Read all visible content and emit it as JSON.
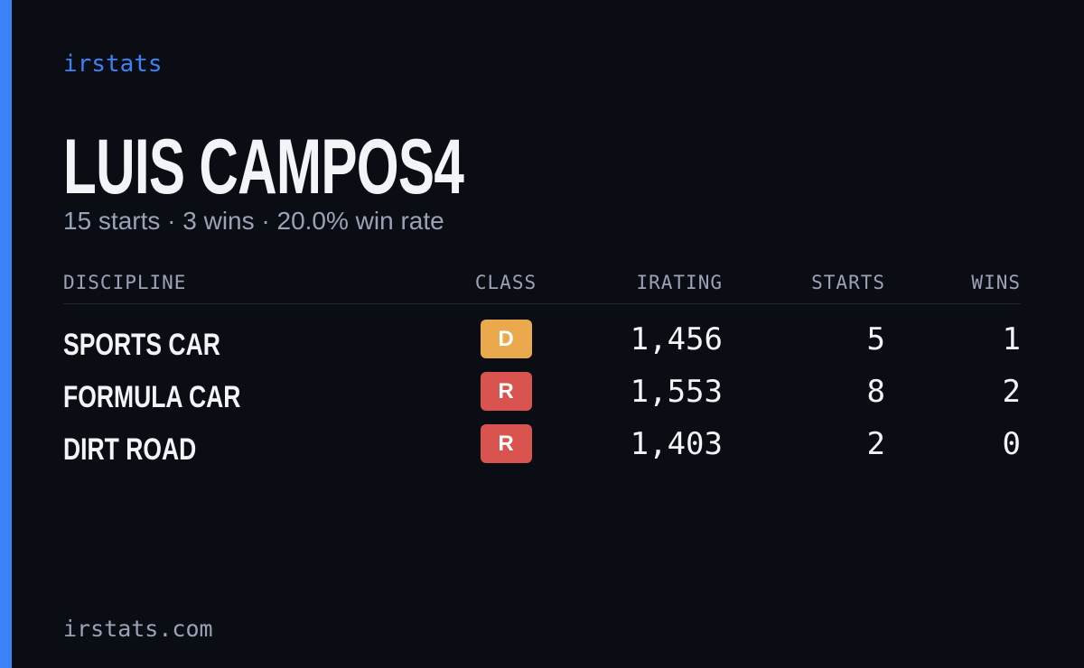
{
  "header": {
    "brand": "irstats",
    "name": "LUIS CAMPOS4",
    "summary": "15 starts · 3 wins · 20.0% win rate"
  },
  "table": {
    "columns": [
      "DISCIPLINE",
      "CLASS",
      "IRATING",
      "STARTS",
      "WINS"
    ],
    "rows": [
      {
        "discipline": "SPORTS CAR",
        "class": "D",
        "class_color": "#e9a94c",
        "irating": "1,456",
        "starts": "5",
        "wins": "1"
      },
      {
        "discipline": "FORMULA CAR",
        "class": "R",
        "class_color": "#d9534f",
        "irating": "1,553",
        "starts": "8",
        "wins": "2"
      },
      {
        "discipline": "DIRT ROAD",
        "class": "R",
        "class_color": "#d9534f",
        "irating": "1,403",
        "starts": "2",
        "wins": "0"
      }
    ]
  },
  "footer": {
    "site": "irstats.com"
  }
}
